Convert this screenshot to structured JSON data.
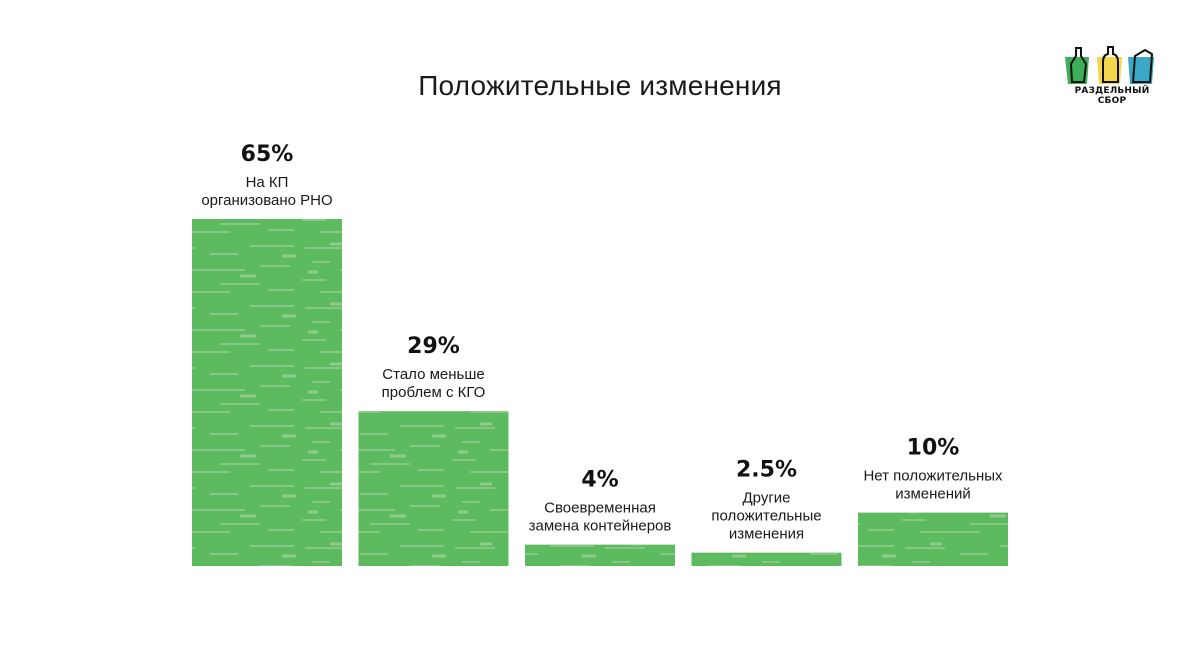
{
  "title": "Положительные изменения",
  "logo": {
    "text": "РАЗДЕЛЬНЫЙ СБОР"
  },
  "colors": {
    "bar": "#5cbb5f",
    "bar_texture": "#8fc88a",
    "logo_green": "#3cae5a",
    "logo_yellow": "#f2d64b",
    "logo_blue": "#3aa8c6"
  },
  "chart_data": {
    "type": "bar",
    "title": "Положительные изменения",
    "categories": [
      "На КП организовано РНО",
      "Стало меньше проблем с КГО",
      "Своевременная замена контейнеров",
      "Другие положительные изменения",
      "Нет положительных изменений"
    ],
    "values": [
      65,
      29,
      4,
      2.5,
      10
    ],
    "value_labels": [
      "65%",
      "29%",
      "4%",
      "2.5%",
      "10%"
    ],
    "label_lines": [
      [
        "На КП",
        "организовано РНО"
      ],
      [
        "Стало меньше",
        "проблем с КГО"
      ],
      [
        "Своевременная",
        "замена контейнеров"
      ],
      [
        "Другие",
        "положительные",
        "изменения"
      ],
      [
        "Нет положительных",
        "изменений"
      ]
    ],
    "xlabel": "",
    "ylabel": "",
    "ylim": [
      0,
      65
    ],
    "grid": false,
    "legend": "none"
  }
}
